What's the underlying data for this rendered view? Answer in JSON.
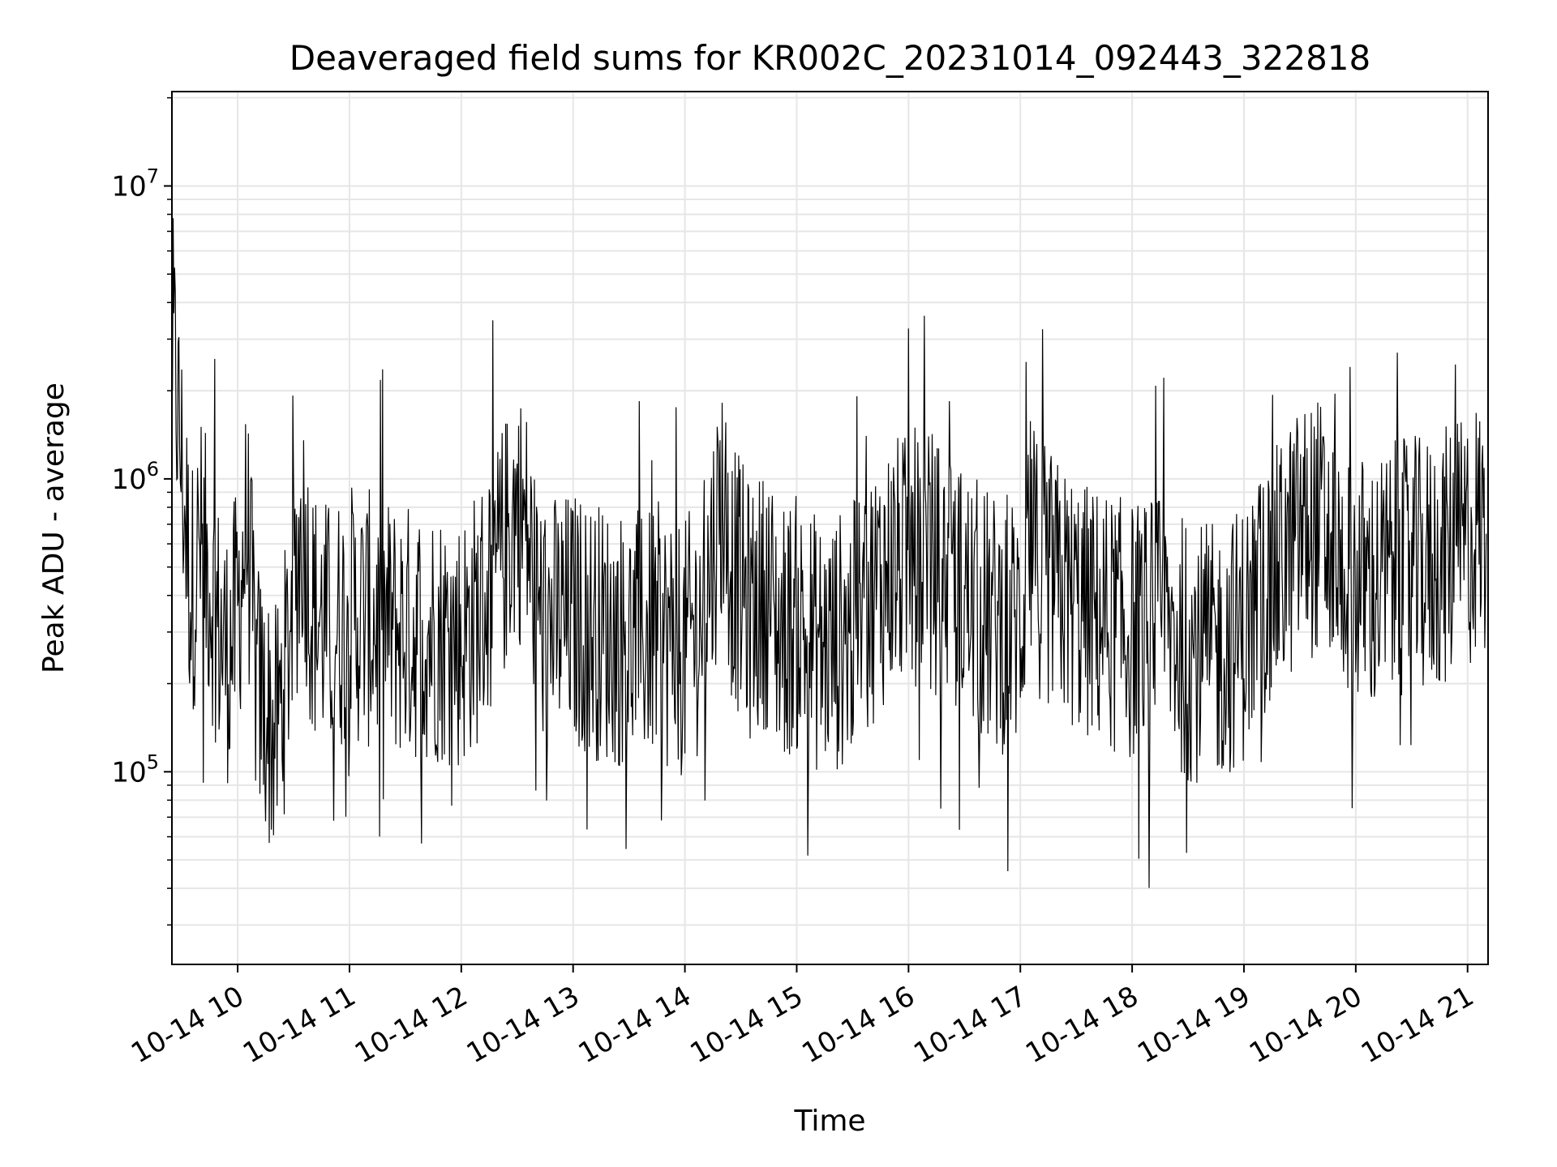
{
  "chart_data": {
    "type": "line",
    "title": "Deaveraged field sums for KR002C_20231014_092443_322818",
    "xlabel": "Time",
    "ylabel": "Peak ADU - average",
    "y_scale": "log",
    "ylim": [
      22000,
      21000000
    ],
    "xlim": [
      "2023-10-14 09:24:43",
      "2023-10-14 21:11:00"
    ],
    "x_ticks": [
      {
        "value": "2023-10-14 10:00",
        "label": "10-14 10"
      },
      {
        "value": "2023-10-14 11:00",
        "label": "10-14 11"
      },
      {
        "value": "2023-10-14 12:00",
        "label": "10-14 12"
      },
      {
        "value": "2023-10-14 13:00",
        "label": "10-14 13"
      },
      {
        "value": "2023-10-14 14:00",
        "label": "10-14 14"
      },
      {
        "value": "2023-10-14 15:00",
        "label": "10-14 15"
      },
      {
        "value": "2023-10-14 16:00",
        "label": "10-14 16"
      },
      {
        "value": "2023-10-14 17:00",
        "label": "10-14 17"
      },
      {
        "value": "2023-10-14 18:00",
        "label": "10-14 18"
      },
      {
        "value": "2023-10-14 19:00",
        "label": "10-14 19"
      },
      {
        "value": "2023-10-14 20:00",
        "label": "10-14 20"
      },
      {
        "value": "2023-10-14 21:00",
        "label": "10-14 21"
      }
    ],
    "y_ticks": [
      {
        "value": 100000,
        "base": "10",
        "exp": "5"
      },
      {
        "value": 1000000,
        "base": "10",
        "exp": "6"
      },
      {
        "value": 10000000,
        "base": "10",
        "exp": "7"
      }
    ],
    "grid": true,
    "grid_color": "#e6e6e6",
    "line_color": "#000000",
    "series": [
      {
        "x": [
          "2023-10-14 09:25",
          "2023-10-14 09:35",
          "2023-10-14 09:40",
          "2023-10-14 09:45",
          "2023-10-14 09:50",
          "2023-10-14 09:55",
          "2023-10-14 10:00",
          "2023-10-14 10:05",
          "2023-10-14 10:10",
          "2023-10-14 10:15",
          "2023-10-14 10:20",
          "2023-10-14 10:25",
          "2023-10-14 10:30",
          "2023-10-14 10:35",
          "2023-10-14 10:40",
          "2023-10-14 10:50",
          "2023-10-14 11:00",
          "2023-10-14 11:15",
          "2023-10-14 11:30",
          "2023-10-14 11:45",
          "2023-10-14 12:00",
          "2023-10-14 12:10",
          "2023-10-14 12:20",
          "2023-10-14 12:30",
          "2023-10-14 12:35",
          "2023-10-14 12:40",
          "2023-10-14 12:45",
          "2023-10-14 12:50",
          "2023-10-14 13:00",
          "2023-10-14 13:15",
          "2023-10-14 13:30",
          "2023-10-14 13:45",
          "2023-10-14 14:00",
          "2023-10-14 14:10",
          "2023-10-14 14:20",
          "2023-10-14 14:25",
          "2023-10-14 14:35",
          "2023-10-14 14:45",
          "2023-10-14 14:50",
          "2023-10-14 15:00",
          "2023-10-14 15:15",
          "2023-10-14 15:30",
          "2023-10-14 15:40",
          "2023-10-14 15:50",
          "2023-10-14 16:00",
          "2023-10-14 16:10",
          "2023-10-14 16:20",
          "2023-10-14 16:30",
          "2023-10-14 16:45",
          "2023-10-14 17:00",
          "2023-10-14 17:05",
          "2023-10-14 17:10",
          "2023-10-14 17:20",
          "2023-10-14 17:35",
          "2023-10-14 17:45",
          "2023-10-14 18:00",
          "2023-10-14 18:15",
          "2023-10-14 18:30",
          "2023-10-14 18:45",
          "2023-10-14 19:00",
          "2023-10-14 19:10",
          "2023-10-14 19:20",
          "2023-10-14 19:30",
          "2023-10-14 19:40",
          "2023-10-14 19:50",
          "2023-10-14 20:00",
          "2023-10-14 20:10",
          "2023-10-14 20:20",
          "2023-10-14 20:30",
          "2023-10-14 20:40",
          "2023-10-14 20:50",
          "2023-10-14 21:00",
          "2023-10-14 21:05",
          "2023-10-14 21:10"
        ],
        "y": [
          3000000,
          400000,
          600000,
          450000,
          300000,
          250000,
          350000,
          700000,
          200000,
          160000,
          130000,
          200000,
          400000,
          700000,
          350000,
          300000,
          350000,
          320000,
          300000,
          300000,
          280000,
          350000,
          500000,
          800000,
          650000,
          400000,
          300000,
          320000,
          330000,
          300000,
          280000,
          300000,
          260000,
          350000,
          900000,
          500000,
          350000,
          400000,
          300000,
          320000,
          260000,
          300000,
          400000,
          500000,
          520000,
          560000,
          450000,
          400000,
          320000,
          320000,
          600000,
          500000,
          420000,
          350000,
          330000,
          300000,
          320000,
          260000,
          250000,
          300000,
          400000,
          500000,
          650000,
          700000,
          500000,
          450000,
          420000,
          480000,
          500000,
          500000,
          550000,
          600000,
          700000,
          650000
        ]
      }
    ]
  }
}
